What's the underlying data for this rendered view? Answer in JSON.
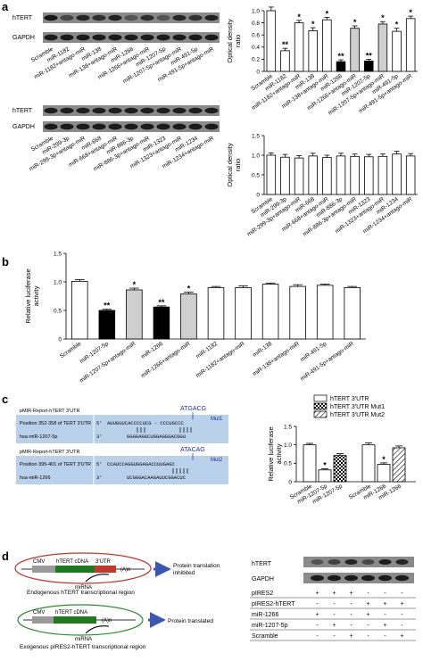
{
  "panels": {
    "a": "a",
    "b": "b",
    "c": "c",
    "d": "d"
  },
  "blot_top": {
    "labels": [
      "hTERT",
      "GAPDH"
    ],
    "lanes": [
      "Scramble",
      "miR-1182",
      "miR-1182+antago-miR",
      "miR-138",
      "miR-138+antago-miR",
      "miR-1266",
      "miR-1266+antago-miR",
      "miR-1207-5p",
      "miR-1207-5p+antago-miR",
      "miR-491-5p",
      "miR-491-5p+antago-miR"
    ]
  },
  "blot_bottom": {
    "labels": [
      "hTERT",
      "GAPDH"
    ],
    "lanes": [
      "Scramble",
      "miR-299-3p",
      "miR-299-3p+antago-miR",
      "miR-668",
      "miR-668+antago-miR",
      "miR-886-3p",
      "miR-886-3p+antago-miR",
      "miR-1323",
      "miR-1323+antago-miR",
      "miR-1234",
      "miR-1234+antago-miR"
    ]
  },
  "chart_data": [
    {
      "id": "a-top",
      "type": "bar",
      "ylabel": "Optical density ratio",
      "ylim": [
        0,
        1.0
      ],
      "yticks": [
        "0",
        "0.2",
        "0.4",
        "0.6",
        "0.8",
        "1.0"
      ],
      "categories": [
        "Scramble",
        "miR-1182",
        "miR-1182+antago-miR",
        "miR-138",
        "miR-138+antago-miR",
        "miR-1266",
        "miR-1266+antago-miR",
        "miR-1207-5p",
        "miR-1207-5p+antago-miR",
        "miR-491-5p",
        "miR-491-5p+antago-miR"
      ],
      "values": [
        1.0,
        0.34,
        0.8,
        0.67,
        0.85,
        0.16,
        0.71,
        0.17,
        0.78,
        0.66,
        0.87
      ],
      "errors": [
        0.06,
        0.04,
        0.04,
        0.05,
        0.04,
        0.03,
        0.04,
        0.03,
        0.04,
        0.05,
        0.04
      ],
      "fills": [
        "white",
        "white",
        "white",
        "white",
        "white",
        "black",
        "lightgray",
        "black",
        "lightgray",
        "white",
        "white"
      ],
      "marks": [
        "",
        "**",
        "*",
        "*",
        "*",
        "**",
        "*",
        "**",
        "*",
        "*",
        "*"
      ]
    },
    {
      "id": "a-bottom",
      "type": "bar",
      "ylabel": "Optical density ratio",
      "ylim": [
        0,
        1.5
      ],
      "yticks": [
        "0",
        "0.5",
        "1.0",
        "1.5"
      ],
      "categories": [
        "Scramble",
        "miR-299-3p",
        "miR-299-3p+antago-miR",
        "miR-668",
        "miR-668+antago-miR",
        "miR-886-3p",
        "miR-886-3p+antago-miR",
        "miR-1323",
        "miR-1323+antago-miR",
        "miR-1234",
        "miR-1234+antago-miR"
      ],
      "values": [
        1.0,
        0.95,
        0.93,
        0.98,
        0.94,
        0.98,
        0.97,
        0.96,
        0.97,
        1.03,
        0.98
      ],
      "errors": [
        0.06,
        0.07,
        0.06,
        0.07,
        0.06,
        0.07,
        0.06,
        0.06,
        0.06,
        0.07,
        0.06
      ],
      "fills": [
        "white",
        "white",
        "white",
        "white",
        "white",
        "white",
        "white",
        "white",
        "white",
        "white",
        "white"
      ],
      "marks": [
        "",
        "",
        "",
        "",
        "",
        "",
        "",
        "",
        "",
        "",
        ""
      ]
    },
    {
      "id": "b",
      "type": "bar",
      "ylabel": "Relative luciferase activity",
      "ylim": [
        0,
        1.5
      ],
      "yticks": [
        "0",
        "0.5",
        "1.0",
        "1.5"
      ],
      "categories": [
        "Scramble",
        "miR-1207-5p",
        "miR-1207-5p+antago-miR",
        "miR-1266",
        "miR-1266+antago-miR",
        "miR-1182",
        "miR-1182+antago-miR",
        "miR-138",
        "miR-138+antago-miR",
        "miR-491-5p",
        "miR-491-5p+antago-miR"
      ],
      "values": [
        1.01,
        0.5,
        0.86,
        0.56,
        0.79,
        0.9,
        0.9,
        0.96,
        0.92,
        0.94,
        0.9
      ],
      "errors": [
        0.03,
        0.02,
        0.03,
        0.02,
        0.03,
        0.02,
        0.03,
        0.02,
        0.03,
        0.02,
        0.02
      ],
      "fills": [
        "white",
        "black",
        "lightgray",
        "black",
        "lightgray",
        "white",
        "white",
        "white",
        "white",
        "white",
        "white"
      ],
      "marks": [
        "",
        "**",
        "*",
        "**",
        "*",
        "",
        "",
        "",
        "",
        "",
        ""
      ]
    },
    {
      "id": "c",
      "type": "bar",
      "ylabel": "Relative luciferase activity",
      "ylim": [
        0,
        1.5
      ],
      "yticks": [
        "0",
        "0.5",
        "1.0",
        "1.5"
      ],
      "series": [
        {
          "name": "hTERT 3'UTR",
          "fill": "white"
        },
        {
          "name": "hTERT 3'UTR Mut1",
          "fill": "checker"
        },
        {
          "name": "hTERT 3'UTR Mut2",
          "fill": "hatch"
        }
      ],
      "groups": [
        {
          "bars": [
            {
              "label": "Scramble",
              "value": 1.0,
              "error": 0.04,
              "series": 0,
              "mark": ""
            },
            {
              "label": "miR-1207-5p",
              "value": 0.32,
              "error": 0.03,
              "series": 0,
              "mark": "*"
            },
            {
              "label": "miR-1207-5p",
              "value": 0.71,
              "error": 0.05,
              "series": 1,
              "mark": ""
            }
          ]
        },
        {
          "bars": [
            {
              "label": "Scramble",
              "value": 1.0,
              "error": 0.05,
              "series": 0,
              "mark": ""
            },
            {
              "label": "miR-1266",
              "value": 0.47,
              "error": 0.04,
              "series": 0,
              "mark": "*"
            },
            {
              "label": "miR-1266",
              "value": 0.92,
              "error": 0.05,
              "series": 2,
              "mark": ""
            }
          ]
        }
      ]
    }
  ],
  "c_sequences": [
    {
      "header": "pMIR-Report-hTERT 3'UTR",
      "position": "Position 352-358 of TERT 3'UTR",
      "mirna": "hsa-miR-1207-5p",
      "utr_seq": "AUUGUUCACCCCUCG - CCCUGCCC",
      "mir_seq": "GGGGAGGCUGGAGGGACGGU",
      "mut_seq": "ATGACG",
      "mut_label": "Mut1"
    },
    {
      "header": "pMIR-Report-hTERT 3'UTR",
      "position": "Position 395-401 of TERT 3'UTR",
      "mirna": "hsa-miR-1266",
      "utr_seq": "CCAUCCAGGUGGAGACCUUGAGC",
      "mir_seq": "UCGGGACAAGAUUCGGACUC",
      "mut_seq": "ATACAG",
      "mut_label": "Mut2"
    }
  ],
  "d": {
    "construct1": {
      "cmv": "CMV",
      "cdna": "hTERT cDNA",
      "utr": "3'UTR",
      "polyA": "(A)n",
      "mirna": "miRNA",
      "result": "Protein translation inhibited",
      "caption": "Endogenous hTERT transcriptional region"
    },
    "construct2": {
      "cmv": "CMV",
      "cdna": "hTERT cDNA",
      "polyA": "(A)n",
      "mirna": "miRNA",
      "result": "Protein translated",
      "caption": "Exogenous pIRES2-hTERT transcriptional region"
    },
    "blot_labels": [
      "hTERT",
      "GAPDH"
    ],
    "table": [
      {
        "name": "pIRES2",
        "signs": [
          "+",
          "+",
          "+",
          "-",
          "-",
          "-"
        ]
      },
      {
        "name": "pIRES2-hTERT",
        "signs": [
          "-",
          "-",
          "-",
          "+",
          "+",
          "+"
        ]
      },
      {
        "name": "miR-1266",
        "signs": [
          "+",
          "-",
          "-",
          "+",
          "-",
          "-"
        ]
      },
      {
        "name": "miR-1207-5p",
        "signs": [
          "-",
          "+",
          "-",
          "-",
          "+",
          "-"
        ]
      },
      {
        "name": "Scramble",
        "signs": [
          "-",
          "-",
          "+",
          "-",
          "-",
          "+"
        ]
      }
    ]
  }
}
